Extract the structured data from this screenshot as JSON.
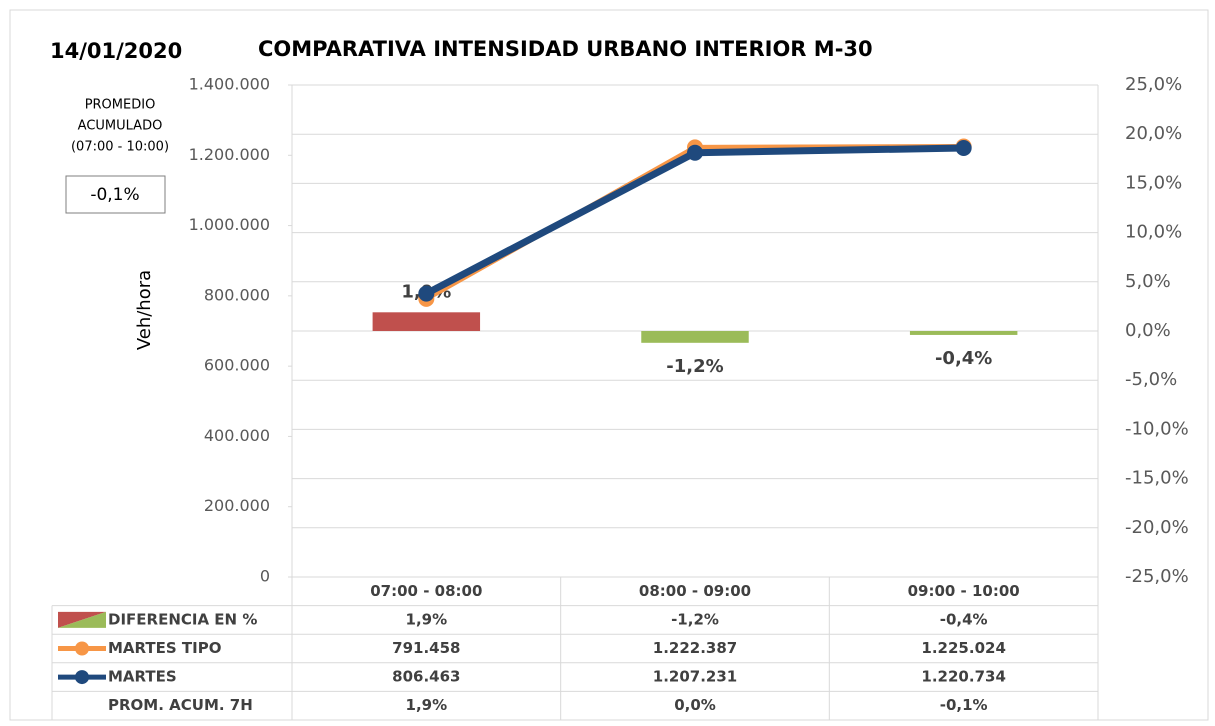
{
  "chart_data": {
    "type": "combo",
    "date": "14/01/2020",
    "title": "COMPARATIVA INTENSIDAD URBANO INTERIOR M-30",
    "y_label": "Veh/hora",
    "summary": {
      "label_lines": [
        "PROMEDIO",
        "ACUMULADO",
        "(07:00 - 10:00)"
      ],
      "value": -0.1,
      "value_label": "-0,1%"
    },
    "categories": [
      "07:00 - 08:00",
      "08:00 - 09:00",
      "09:00 - 10:00"
    ],
    "ylim": [
      0,
      1400000
    ],
    "yticks": [
      0,
      {
        "value": 200000,
        "label": "200.000"
      },
      {
        "value": 400000,
        "label": "400.000"
      },
      {
        "value": 600000,
        "label": "600.000"
      },
      {
        "value": 800000,
        "label": "800.000"
      },
      {
        "value": 1000000,
        "label": "1.000.000"
      },
      {
        "value": 1200000,
        "label": "1.200.000"
      },
      {
        "value": 1400000,
        "label": "1.400.000"
      }
    ],
    "y2lim": [
      -25,
      25
    ],
    "y2ticks": [
      {
        "value": -25,
        "label": "-25,0%"
      },
      {
        "value": -20,
        "label": "-20,0%"
      },
      {
        "value": -15,
        "label": "-15,0%"
      },
      {
        "value": -10,
        "label": "-10,0%"
      },
      {
        "value": -5,
        "label": "-5,0%"
      },
      {
        "value": 0,
        "label": "0,0%"
      },
      {
        "value": 5,
        "label": "5,0%"
      },
      {
        "value": 10,
        "label": "10,0%"
      },
      {
        "value": 15,
        "label": "15,0%"
      },
      {
        "value": 20,
        "label": "20,0%"
      },
      {
        "value": 25,
        "label": "25,0%"
      }
    ],
    "grid": true,
    "series": [
      {
        "name": "DIFERENCIA EN %",
        "type": "bar",
        "axis": "y2",
        "colors": [
          "#c0504d",
          "#9bbb59",
          "#9bbb59"
        ],
        "values": [
          1.9,
          -1.2,
          -0.4
        ],
        "value_labels": [
          "1,9%",
          "-1,2%",
          "-0,4%"
        ]
      },
      {
        "name": "MARTES TIPO",
        "type": "line",
        "color": "#f79646",
        "values": [
          791458,
          1222387,
          1225024
        ],
        "value_labels": [
          "791.458",
          "1.222.387",
          "1.225.024"
        ]
      },
      {
        "name": "MARTES",
        "type": "line",
        "color": "#1f497d",
        "values": [
          806463,
          1207231,
          1220734
        ],
        "value_labels": [
          "806.463",
          "1.207.231",
          "1.220.734"
        ]
      }
    ],
    "table_rows": [
      {
        "name": "PROM. ACUM. 7H",
        "values": [
          1.9,
          0.0,
          -0.1
        ],
        "value_labels": [
          "1,9%",
          "0,0%",
          "-0,1%"
        ]
      }
    ]
  }
}
